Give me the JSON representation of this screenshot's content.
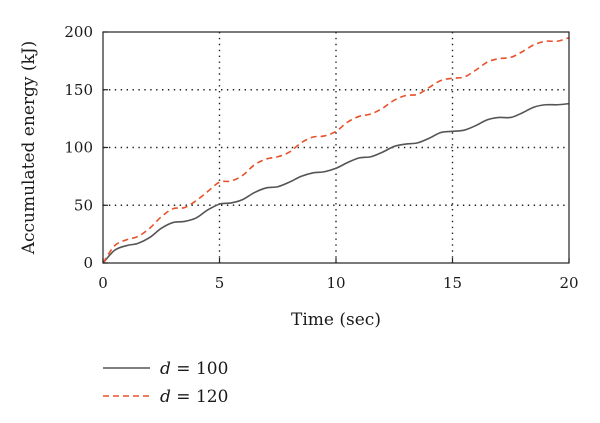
{
  "chart_data": {
    "type": "line",
    "title": "",
    "xlabel": "Time (sec)",
    "ylabel": "Accumulated energy (kJ)",
    "xlim": [
      0,
      20
    ],
    "ylim": [
      0,
      200
    ],
    "xticks": [
      0,
      5,
      10,
      15,
      20
    ],
    "yticks": [
      0,
      50,
      100,
      150,
      200
    ],
    "x_tick_labels": [
      "0",
      "5",
      "10",
      "15",
      "20"
    ],
    "y_tick_labels": [
      "0",
      "50",
      "100",
      "150",
      "200"
    ],
    "grid": {
      "style": "dotted",
      "x_at": [
        5,
        10,
        15
      ],
      "y_at": [
        50,
        100,
        150
      ]
    },
    "legend_position": "bottom-left, below plot",
    "series": [
      {
        "name": "d = 100",
        "legend_var": "d",
        "legend_rest": " = 100",
        "color": "#555555",
        "dash": "solid",
        "x": [
          0,
          0.5,
          1.0,
          1.5,
          2.0,
          2.5,
          3.0,
          3.5,
          4.0,
          4.5,
          5.0,
          5.5,
          6.0,
          6.5,
          7.0,
          7.5,
          8.0,
          8.5,
          9.0,
          9.5,
          10.0,
          10.5,
          11.0,
          11.5,
          12.0,
          12.5,
          13.0,
          13.5,
          14.0,
          14.5,
          15.0,
          15.5,
          16.0,
          16.5,
          17.0,
          17.5,
          18.0,
          18.5,
          19.0,
          19.5,
          20.0
        ],
        "y": [
          0,
          11,
          15,
          17,
          22,
          30,
          35,
          36,
          39,
          46,
          51,
          52,
          55,
          61,
          65,
          66,
          70,
          75,
          78,
          79,
          82,
          87,
          91,
          92,
          96,
          101,
          103,
          104,
          108,
          113,
          114,
          115,
          119,
          124,
          126,
          126,
          130,
          135,
          137,
          137,
          138
        ]
      },
      {
        "name": "d = 120",
        "legend_var": "d",
        "legend_rest": " = 120",
        "color": "#e8512a",
        "dash": "dashed",
        "x": [
          0,
          0.5,
          1.0,
          1.5,
          2.0,
          2.5,
          3.0,
          3.5,
          4.0,
          4.5,
          5.0,
          5.5,
          6.0,
          6.5,
          7.0,
          7.5,
          8.0,
          8.5,
          9.0,
          9.5,
          10.0,
          10.5,
          11.0,
          11.5,
          12.0,
          12.5,
          13.0,
          13.5,
          14.0,
          14.5,
          15.0,
          15.5,
          16.0,
          16.5,
          17.0,
          17.5,
          18.0,
          18.5,
          19.0,
          19.5,
          20.0
        ],
        "y": [
          0,
          15,
          20,
          23,
          30,
          40,
          47,
          48,
          54,
          62,
          70,
          71,
          76,
          85,
          90,
          92,
          96,
          104,
          109,
          110,
          114,
          122,
          127,
          129,
          134,
          141,
          145,
          146,
          152,
          158,
          160,
          161,
          167,
          174,
          177,
          178,
          183,
          189,
          192,
          192,
          195
        ]
      }
    ]
  }
}
